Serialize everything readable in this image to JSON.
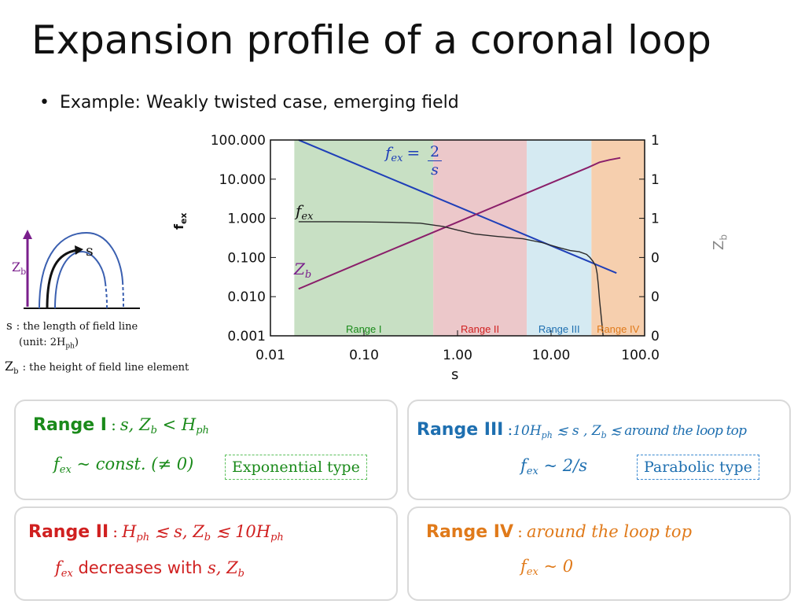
{
  "slide": {
    "title": "Expansion profile of a coronal loop",
    "bullet": "Example: Weakly twisted case, emerging field"
  },
  "diagram": {
    "s_label": "s",
    "zb_main": "Z",
    "zb_sub": "b",
    "s_desc_symbol": "s",
    "s_desc": ": the length of field line",
    "unit_text_pre": "(unit: 2H",
    "unit_text_sub": "ph",
    "unit_text_post": ")",
    "zb_desc_main": "Z",
    "zb_desc_sub": "b",
    "zb_desc": ": the height of field line element",
    "colors": {
      "field_line": "#3a5fb0",
      "arrow": "#7a1f8c"
    }
  },
  "chart_data": {
    "type": "line",
    "xlabel": "s",
    "ylabel_left": "f",
    "ylabel_left_sub": "ex",
    "ylabel_right": "Z",
    "ylabel_right_sub": "b",
    "x_scale": "log",
    "y_scale": "log",
    "xlim": [
      0.01,
      100
    ],
    "ylim": [
      0.001,
      100
    ],
    "x_ticks": [
      "0.01",
      "0.10",
      "1.00",
      "10.00",
      "100.00"
    ],
    "y_ticks": [
      "0.001",
      "0.010",
      "0.100",
      "1.000",
      "10.000",
      "100.000"
    ],
    "ranges": [
      {
        "name": "Range I",
        "from": 0.018,
        "to": 0.55,
        "fill": "#c8e0c4",
        "text_color": "#1a8a1a"
      },
      {
        "name": "Range II",
        "from": 0.55,
        "to": 5.5,
        "fill": "#ecc8ca",
        "text_color": "#d02020"
      },
      {
        "name": "Range III",
        "from": 5.5,
        "to": 27,
        "fill": "#d5eaf2",
        "text_color": "#1e6fb0"
      },
      {
        "name": "Range IV",
        "from": 27,
        "to": 100,
        "fill": "#f6cfae",
        "text_color": "#e07a1a"
      }
    ],
    "series": [
      {
        "label": "2/s",
        "color": "#1f3fb8",
        "points": [
          [
            0.02,
            100
          ],
          [
            0.1,
            20
          ],
          [
            0.5,
            4
          ],
          [
            1,
            2
          ],
          [
            5,
            0.4
          ],
          [
            10,
            0.2
          ],
          [
            25,
            0.08
          ],
          [
            50,
            0.04
          ]
        ]
      },
      {
        "label": "Z_b",
        "color": "#8a1f6a",
        "points": [
          [
            0.02,
            0.0158
          ],
          [
            0.1,
            0.08
          ],
          [
            0.5,
            0.4
          ],
          [
            1,
            0.8
          ],
          [
            5,
            4
          ],
          [
            10,
            8
          ],
          [
            25,
            20
          ],
          [
            33,
            27
          ],
          [
            42,
            31
          ],
          [
            55,
            35
          ]
        ]
      },
      {
        "label": "f_ex",
        "color": "#2a2a2a",
        "points": [
          [
            0.02,
            0.82
          ],
          [
            0.05,
            0.82
          ],
          [
            0.1,
            0.81
          ],
          [
            0.2,
            0.79
          ],
          [
            0.4,
            0.75
          ],
          [
            0.7,
            0.62
          ],
          [
            1,
            0.5
          ],
          [
            1.5,
            0.4
          ],
          [
            2.5,
            0.35
          ],
          [
            5,
            0.3
          ],
          [
            8,
            0.24
          ],
          [
            12,
            0.18
          ],
          [
            16,
            0.15
          ],
          [
            20,
            0.14
          ],
          [
            24,
            0.12
          ],
          [
            26,
            0.1
          ],
          [
            28,
            0.08
          ],
          [
            30,
            0.06
          ],
          [
            31,
            0.04
          ],
          [
            32,
            0.02
          ],
          [
            33,
            0.008
          ],
          [
            34,
            0.004
          ],
          [
            35,
            0.002
          ],
          [
            36,
            0.001
          ]
        ]
      }
    ],
    "annotations": {
      "fex_lhs": "f",
      "fex_lhs_sub": "ex",
      "fex_eq": "=",
      "fex_num": "2",
      "fex_den": "s",
      "curve_fex": "f",
      "curve_fex_sub": "ex",
      "curve_zb": "Z",
      "curve_zb_sub": "b"
    }
  },
  "boxes": {
    "range1": {
      "label": "Range I",
      "colon": ":",
      "cond": "s, Z",
      "cond_sub": "b",
      "cond_rest": " < H",
      "cond_rest_sub": "ph",
      "f_main": "f",
      "f_sub": "ex",
      "f_rest": " ~ const. (≠ 0)",
      "tag": "Exponential type",
      "color": "#1a8a1a"
    },
    "range2": {
      "label": "Range II",
      "colon": ":",
      "cond": "H",
      "cond_sub": "ph",
      "cond_rest": " ≲ s,  Z",
      "cond_rest_sub": "b",
      "cond_tail": " ≲ 10H",
      "cond_tail_sub": "ph",
      "f_main": "f",
      "f_sub": "ex",
      "f_rest": " decreases with ",
      "f_vars": "s, Z",
      "f_vars_sub": "b",
      "color": "#d02020"
    },
    "range3": {
      "label": "Range III",
      "colon": ":",
      "cond": "10H",
      "cond_sub": "ph",
      "cond_rest": " ≲ s , Z",
      "cond_rest_sub": "b",
      "cond_tail": " ≲ around the loop top",
      "f_main": "f",
      "f_sub": "ex",
      "f_rest": " ~ 2/s",
      "tag": "Parabolic type",
      "color": "#1e6fb0"
    },
    "range4": {
      "label": "Range IV",
      "colon": ":",
      "cond": "around the loop top",
      "f_main": "f",
      "f_sub": "ex",
      "f_rest": " ~ 0",
      "color": "#e07a1a"
    }
  }
}
